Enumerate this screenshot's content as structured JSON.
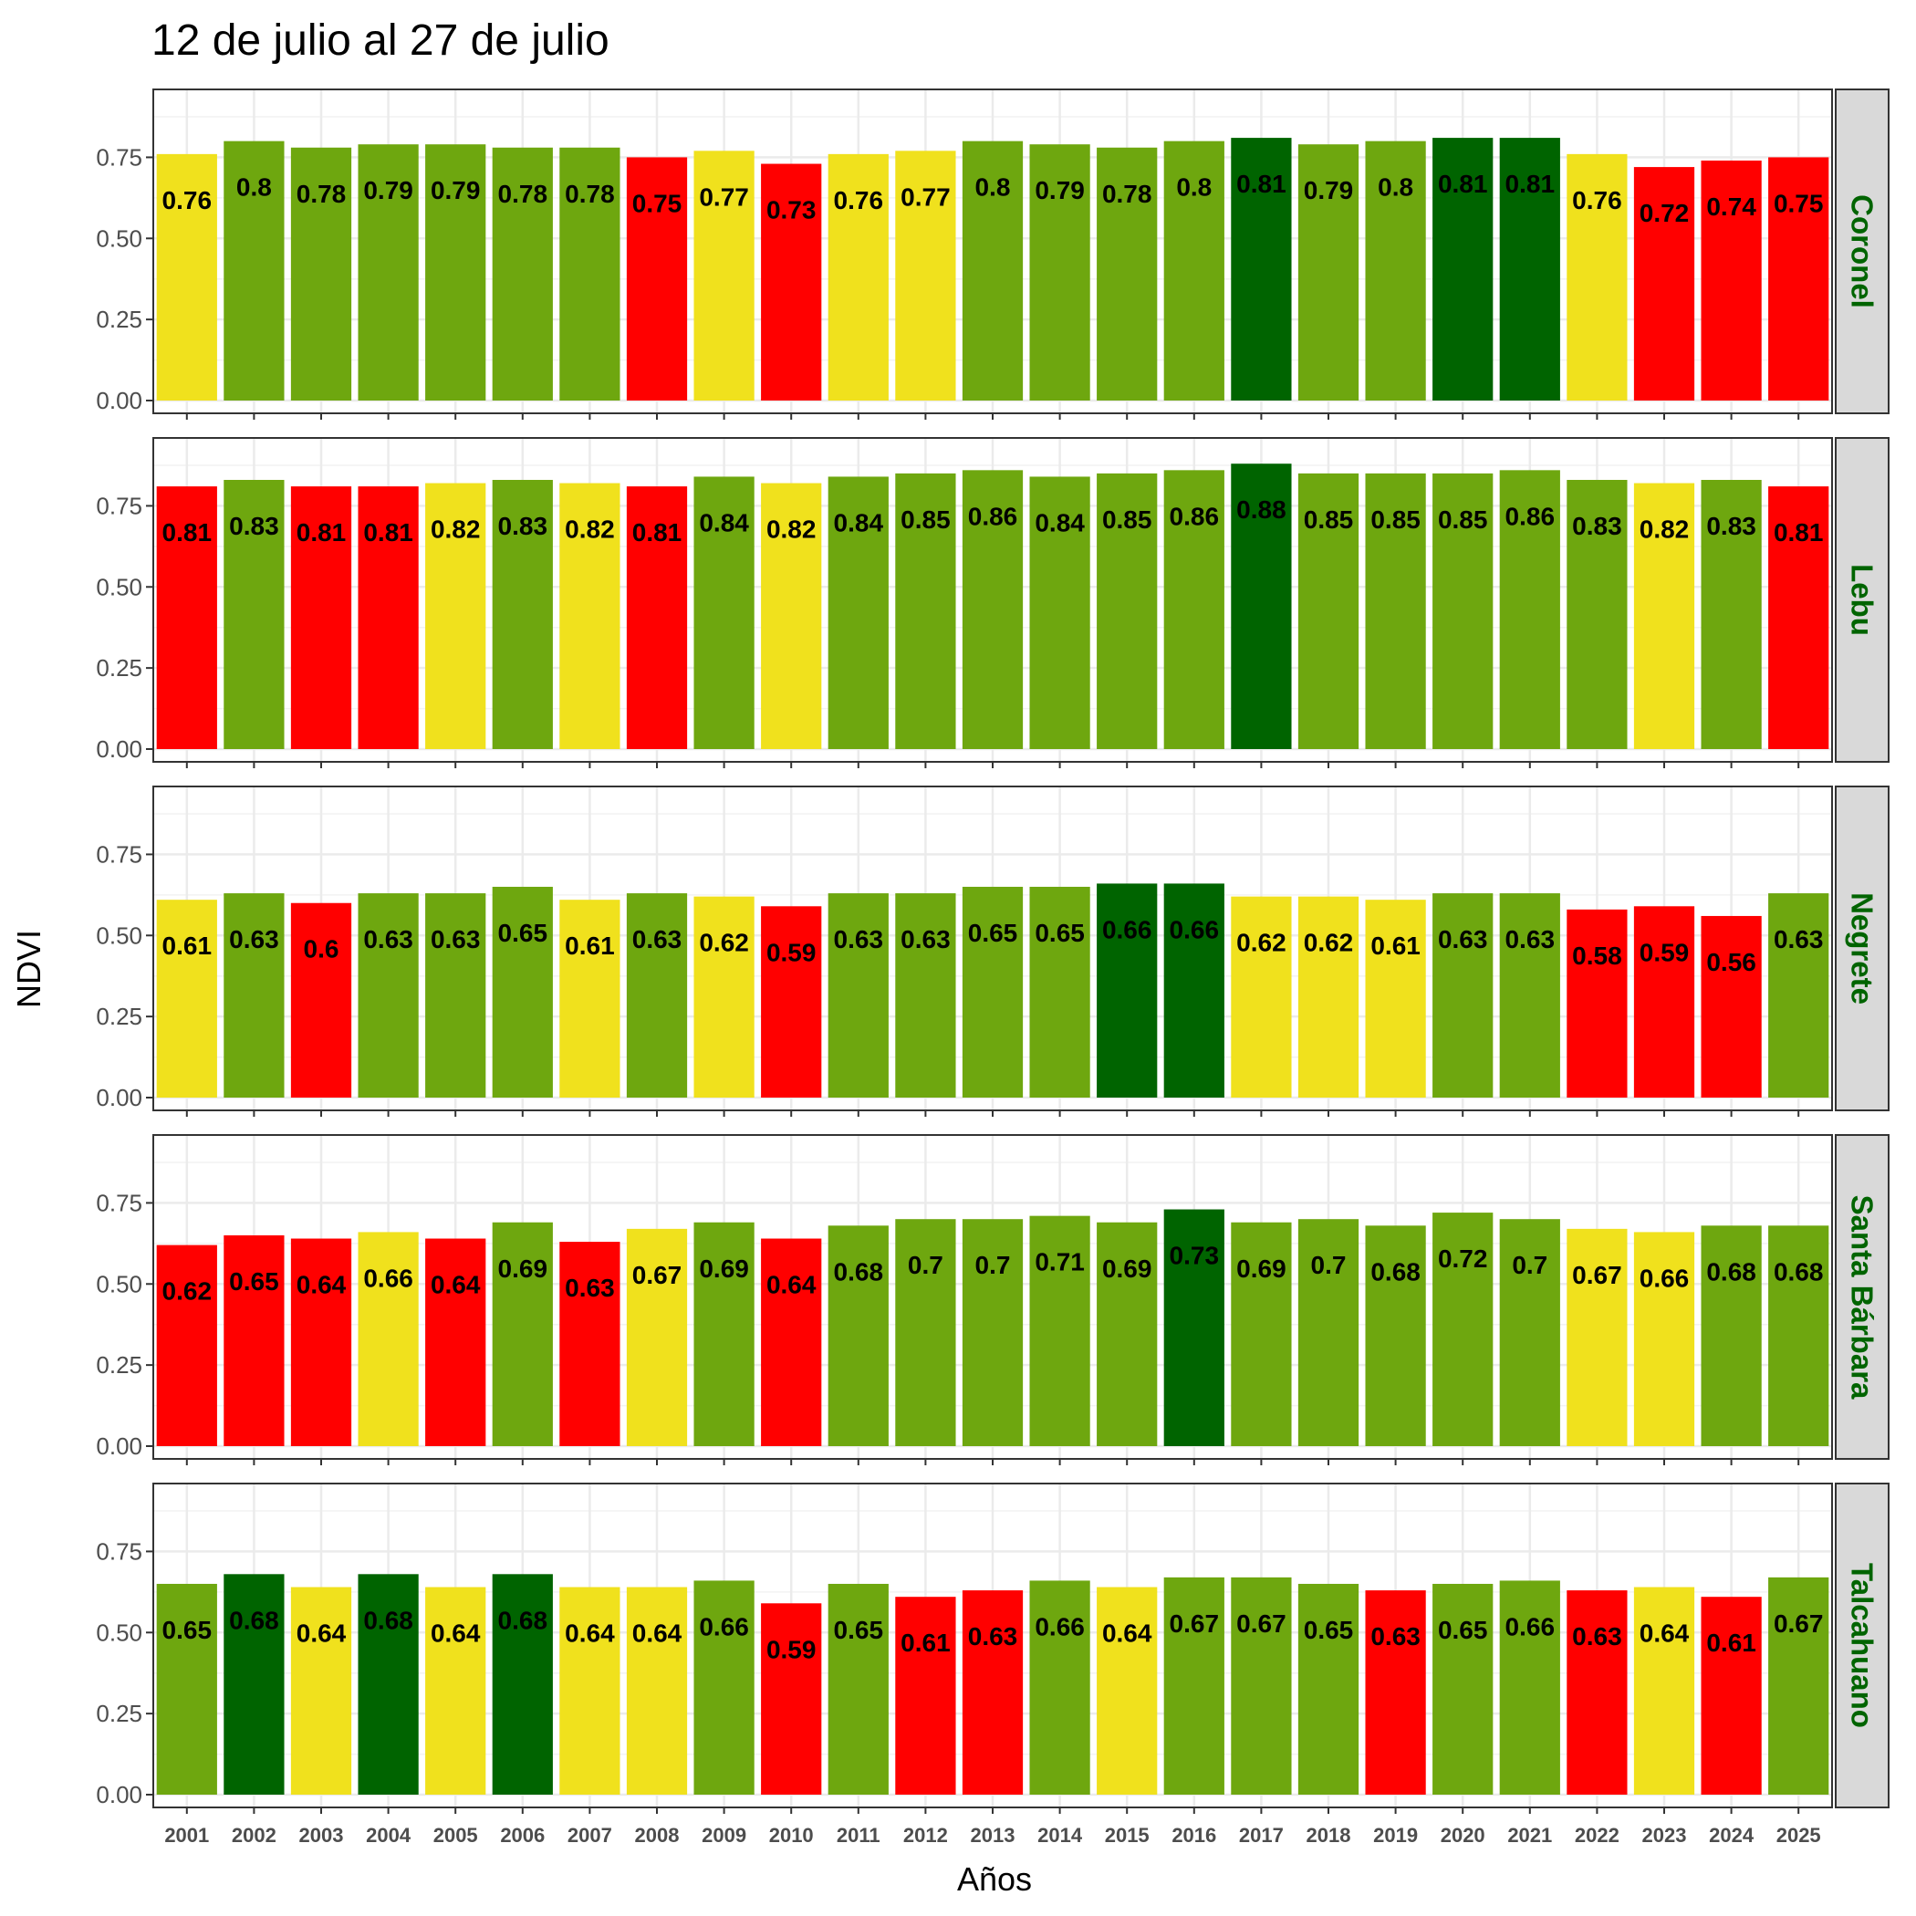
{
  "chart_data": {
    "type": "bar",
    "title": "12 de julio al 27 de julio",
    "xlabel": "Años",
    "ylabel": "NDVI",
    "ylim": [
      0,
      0.92
    ],
    "yticks": [
      "0.00",
      "0.25",
      "0.50",
      "0.75"
    ],
    "grid": true,
    "legend": "none",
    "categories": [
      "2001",
      "2002",
      "2003",
      "2004",
      "2005",
      "2006",
      "2007",
      "2008",
      "2009",
      "2010",
      "2011",
      "2012",
      "2013",
      "2014",
      "2015",
      "2016",
      "2017",
      "2018",
      "2019",
      "2020",
      "2021",
      "2022",
      "2023",
      "2024",
      "2025"
    ],
    "colors": {
      "red": "#ff0000",
      "yellow": "#f0e11d",
      "green": "#6ea70f",
      "darkgreen": "#006400",
      "strip_background": "#d9d9d9",
      "strip_text": "#006400"
    },
    "panels": [
      {
        "name": "Coronel",
        "values": [
          0.76,
          0.8,
          0.78,
          0.79,
          0.79,
          0.78,
          0.78,
          0.75,
          0.77,
          0.73,
          0.76,
          0.77,
          0.8,
          0.79,
          0.78,
          0.8,
          0.81,
          0.79,
          0.8,
          0.81,
          0.81,
          0.76,
          0.72,
          0.74,
          0.75
        ],
        "labels": [
          "0.76",
          "0.8",
          "0.78",
          "0.79",
          "0.79",
          "0.78",
          "0.78",
          "0.75",
          "0.77",
          "0.73",
          "0.76",
          "0.77",
          "0.8",
          "0.79",
          "0.78",
          "0.8",
          "0.81",
          "0.79",
          "0.8",
          "0.81",
          "0.81",
          "0.76",
          "0.72",
          "0.74",
          "0.75"
        ],
        "classes": [
          "yellow",
          "green",
          "green",
          "green",
          "green",
          "green",
          "green",
          "red",
          "yellow",
          "red",
          "yellow",
          "yellow",
          "green",
          "green",
          "green",
          "green",
          "darkgreen",
          "green",
          "green",
          "darkgreen",
          "darkgreen",
          "yellow",
          "red",
          "red",
          "red"
        ]
      },
      {
        "name": "Lebu",
        "values": [
          0.81,
          0.83,
          0.81,
          0.81,
          0.82,
          0.83,
          0.82,
          0.81,
          0.84,
          0.82,
          0.84,
          0.85,
          0.86,
          0.84,
          0.85,
          0.86,
          0.88,
          0.85,
          0.85,
          0.85,
          0.86,
          0.83,
          0.82,
          0.83,
          0.81
        ],
        "labels": [
          "0.81",
          "0.83",
          "0.81",
          "0.81",
          "0.82",
          "0.83",
          "0.82",
          "0.81",
          "0.84",
          "0.82",
          "0.84",
          "0.85",
          "0.86",
          "0.84",
          "0.85",
          "0.86",
          "0.88",
          "0.85",
          "0.85",
          "0.85",
          "0.86",
          "0.83",
          "0.82",
          "0.83",
          "0.81"
        ],
        "classes": [
          "red",
          "green",
          "red",
          "red",
          "yellow",
          "green",
          "yellow",
          "red",
          "green",
          "yellow",
          "green",
          "green",
          "green",
          "green",
          "green",
          "green",
          "darkgreen",
          "green",
          "green",
          "green",
          "green",
          "green",
          "yellow",
          "green",
          "red"
        ]
      },
      {
        "name": "Negrete",
        "values": [
          0.61,
          0.63,
          0.6,
          0.63,
          0.63,
          0.65,
          0.61,
          0.63,
          0.62,
          0.59,
          0.63,
          0.63,
          0.65,
          0.65,
          0.66,
          0.66,
          0.62,
          0.62,
          0.61,
          0.63,
          0.63,
          0.58,
          0.59,
          0.56,
          0.63
        ],
        "labels": [
          "0.61",
          "0.63",
          "0.6",
          "0.63",
          "0.63",
          "0.65",
          "0.61",
          "0.63",
          "0.62",
          "0.59",
          "0.63",
          "0.63",
          "0.65",
          "0.65",
          "0.66",
          "0.66",
          "0.62",
          "0.62",
          "0.61",
          "0.63",
          "0.63",
          "0.58",
          "0.59",
          "0.56",
          "0.63"
        ],
        "classes": [
          "yellow",
          "green",
          "red",
          "green",
          "green",
          "green",
          "yellow",
          "green",
          "yellow",
          "red",
          "green",
          "green",
          "green",
          "green",
          "darkgreen",
          "darkgreen",
          "yellow",
          "yellow",
          "yellow",
          "green",
          "green",
          "red",
          "red",
          "red",
          "green"
        ]
      },
      {
        "name": "Santa Bárbara",
        "values": [
          0.62,
          0.65,
          0.64,
          0.66,
          0.64,
          0.69,
          0.63,
          0.67,
          0.69,
          0.64,
          0.68,
          0.7,
          0.7,
          0.71,
          0.69,
          0.73,
          0.69,
          0.7,
          0.68,
          0.72,
          0.7,
          0.67,
          0.66,
          0.68,
          0.68
        ],
        "labels": [
          "0.62",
          "0.65",
          "0.64",
          "0.66",
          "0.64",
          "0.69",
          "0.63",
          "0.67",
          "0.69",
          "0.64",
          "0.68",
          "0.7",
          "0.7",
          "0.71",
          "0.69",
          "0.73",
          "0.69",
          "0.7",
          "0.68",
          "0.72",
          "0.7",
          "0.67",
          "0.66",
          "0.68",
          "0.68"
        ],
        "classes": [
          "red",
          "red",
          "red",
          "yellow",
          "red",
          "green",
          "red",
          "yellow",
          "green",
          "red",
          "green",
          "green",
          "green",
          "green",
          "green",
          "darkgreen",
          "green",
          "green",
          "green",
          "green",
          "green",
          "yellow",
          "yellow",
          "green",
          "green"
        ]
      },
      {
        "name": "Talcahuano",
        "values": [
          0.65,
          0.68,
          0.64,
          0.68,
          0.64,
          0.68,
          0.64,
          0.64,
          0.66,
          0.59,
          0.65,
          0.61,
          0.63,
          0.66,
          0.64,
          0.67,
          0.67,
          0.65,
          0.63,
          0.65,
          0.66,
          0.63,
          0.64,
          0.61,
          0.67
        ],
        "labels": [
          "0.65",
          "0.68",
          "0.64",
          "0.68",
          "0.64",
          "0.68",
          "0.64",
          "0.64",
          "0.66",
          "0.59",
          "0.65",
          "0.61",
          "0.63",
          "0.66",
          "0.64",
          "0.67",
          "0.67",
          "0.65",
          "0.63",
          "0.65",
          "0.66",
          "0.63",
          "0.64",
          "0.61",
          "0.67"
        ],
        "classes": [
          "green",
          "darkgreen",
          "yellow",
          "darkgreen",
          "yellow",
          "darkgreen",
          "yellow",
          "yellow",
          "green",
          "red",
          "green",
          "red",
          "red",
          "green",
          "yellow",
          "green",
          "green",
          "green",
          "red",
          "green",
          "green",
          "red",
          "yellow",
          "red",
          "green"
        ]
      }
    ]
  }
}
